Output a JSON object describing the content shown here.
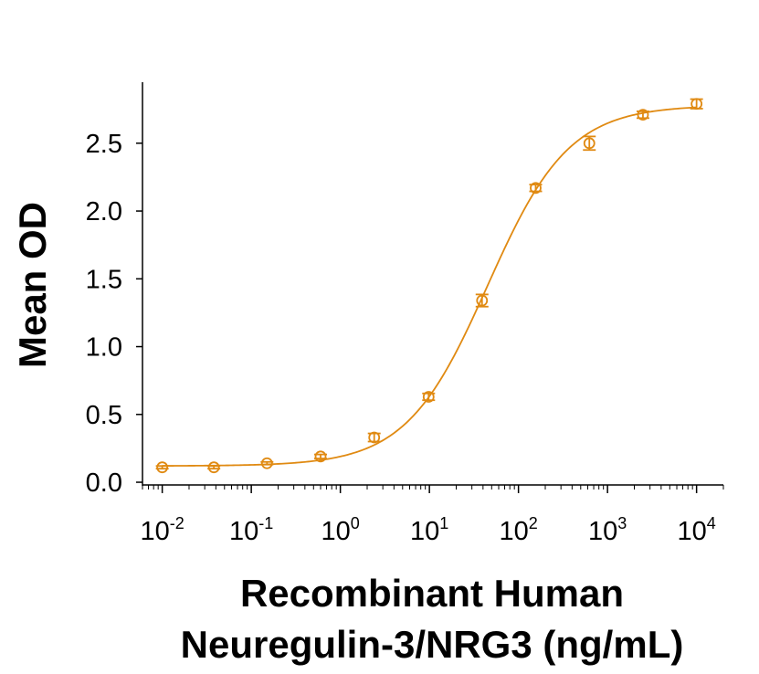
{
  "chart_data": {
    "type": "scatter",
    "xscale": "log",
    "xlim": [
      0.006,
      20000
    ],
    "ylim": [
      -0.02,
      2.95
    ],
    "ylabel": "Mean OD",
    "xlabel_line1": "Recombinant Human",
    "xlabel_line2": "Neuregulin-3/NRG3 (ng/mL)",
    "y_ticks": [
      {
        "value": 0.0,
        "label": "0.0"
      },
      {
        "value": 0.5,
        "label": "0.5"
      },
      {
        "value": 1.0,
        "label": "1.0"
      },
      {
        "value": 1.5,
        "label": "1.5"
      },
      {
        "value": 2.0,
        "label": "2.0"
      },
      {
        "value": 2.5,
        "label": "2.5"
      }
    ],
    "x_ticks": [
      {
        "value": 0.01,
        "base": "10",
        "exp": "-2"
      },
      {
        "value": 0.1,
        "base": "10",
        "exp": "-1"
      },
      {
        "value": 1,
        "base": "10",
        "exp": "0"
      },
      {
        "value": 10,
        "base": "10",
        "exp": "1"
      },
      {
        "value": 100,
        "base": "10",
        "exp": "2"
      },
      {
        "value": 1000,
        "base": "10",
        "exp": "3"
      },
      {
        "value": 10000,
        "base": "10",
        "exp": "4"
      }
    ],
    "series": [
      {
        "color": "#E08A12",
        "points": [
          {
            "x": 0.01,
            "y": 0.11,
            "err": 0.01
          },
          {
            "x": 0.038,
            "y": 0.11,
            "err": 0.01
          },
          {
            "x": 0.15,
            "y": 0.14,
            "err": 0.01
          },
          {
            "x": 0.6,
            "y": 0.19,
            "err": 0.015
          },
          {
            "x": 2.4,
            "y": 0.33,
            "err": 0.03
          },
          {
            "x": 9.8,
            "y": 0.63,
            "err": 0.025
          },
          {
            "x": 39,
            "y": 1.34,
            "err": 0.045
          },
          {
            "x": 156,
            "y": 2.17,
            "err": 0.025
          },
          {
            "x": 625,
            "y": 2.5,
            "err": 0.05
          },
          {
            "x": 2500,
            "y": 2.71,
            "err": 0.025
          },
          {
            "x": 10000,
            "y": 2.79,
            "err": 0.035
          }
        ],
        "fit": {
          "model": "4PL",
          "bottom": 0.12,
          "top": 2.78,
          "ec50": 45,
          "hill": 0.95
        }
      }
    ],
    "grid": false,
    "legend": "none"
  }
}
